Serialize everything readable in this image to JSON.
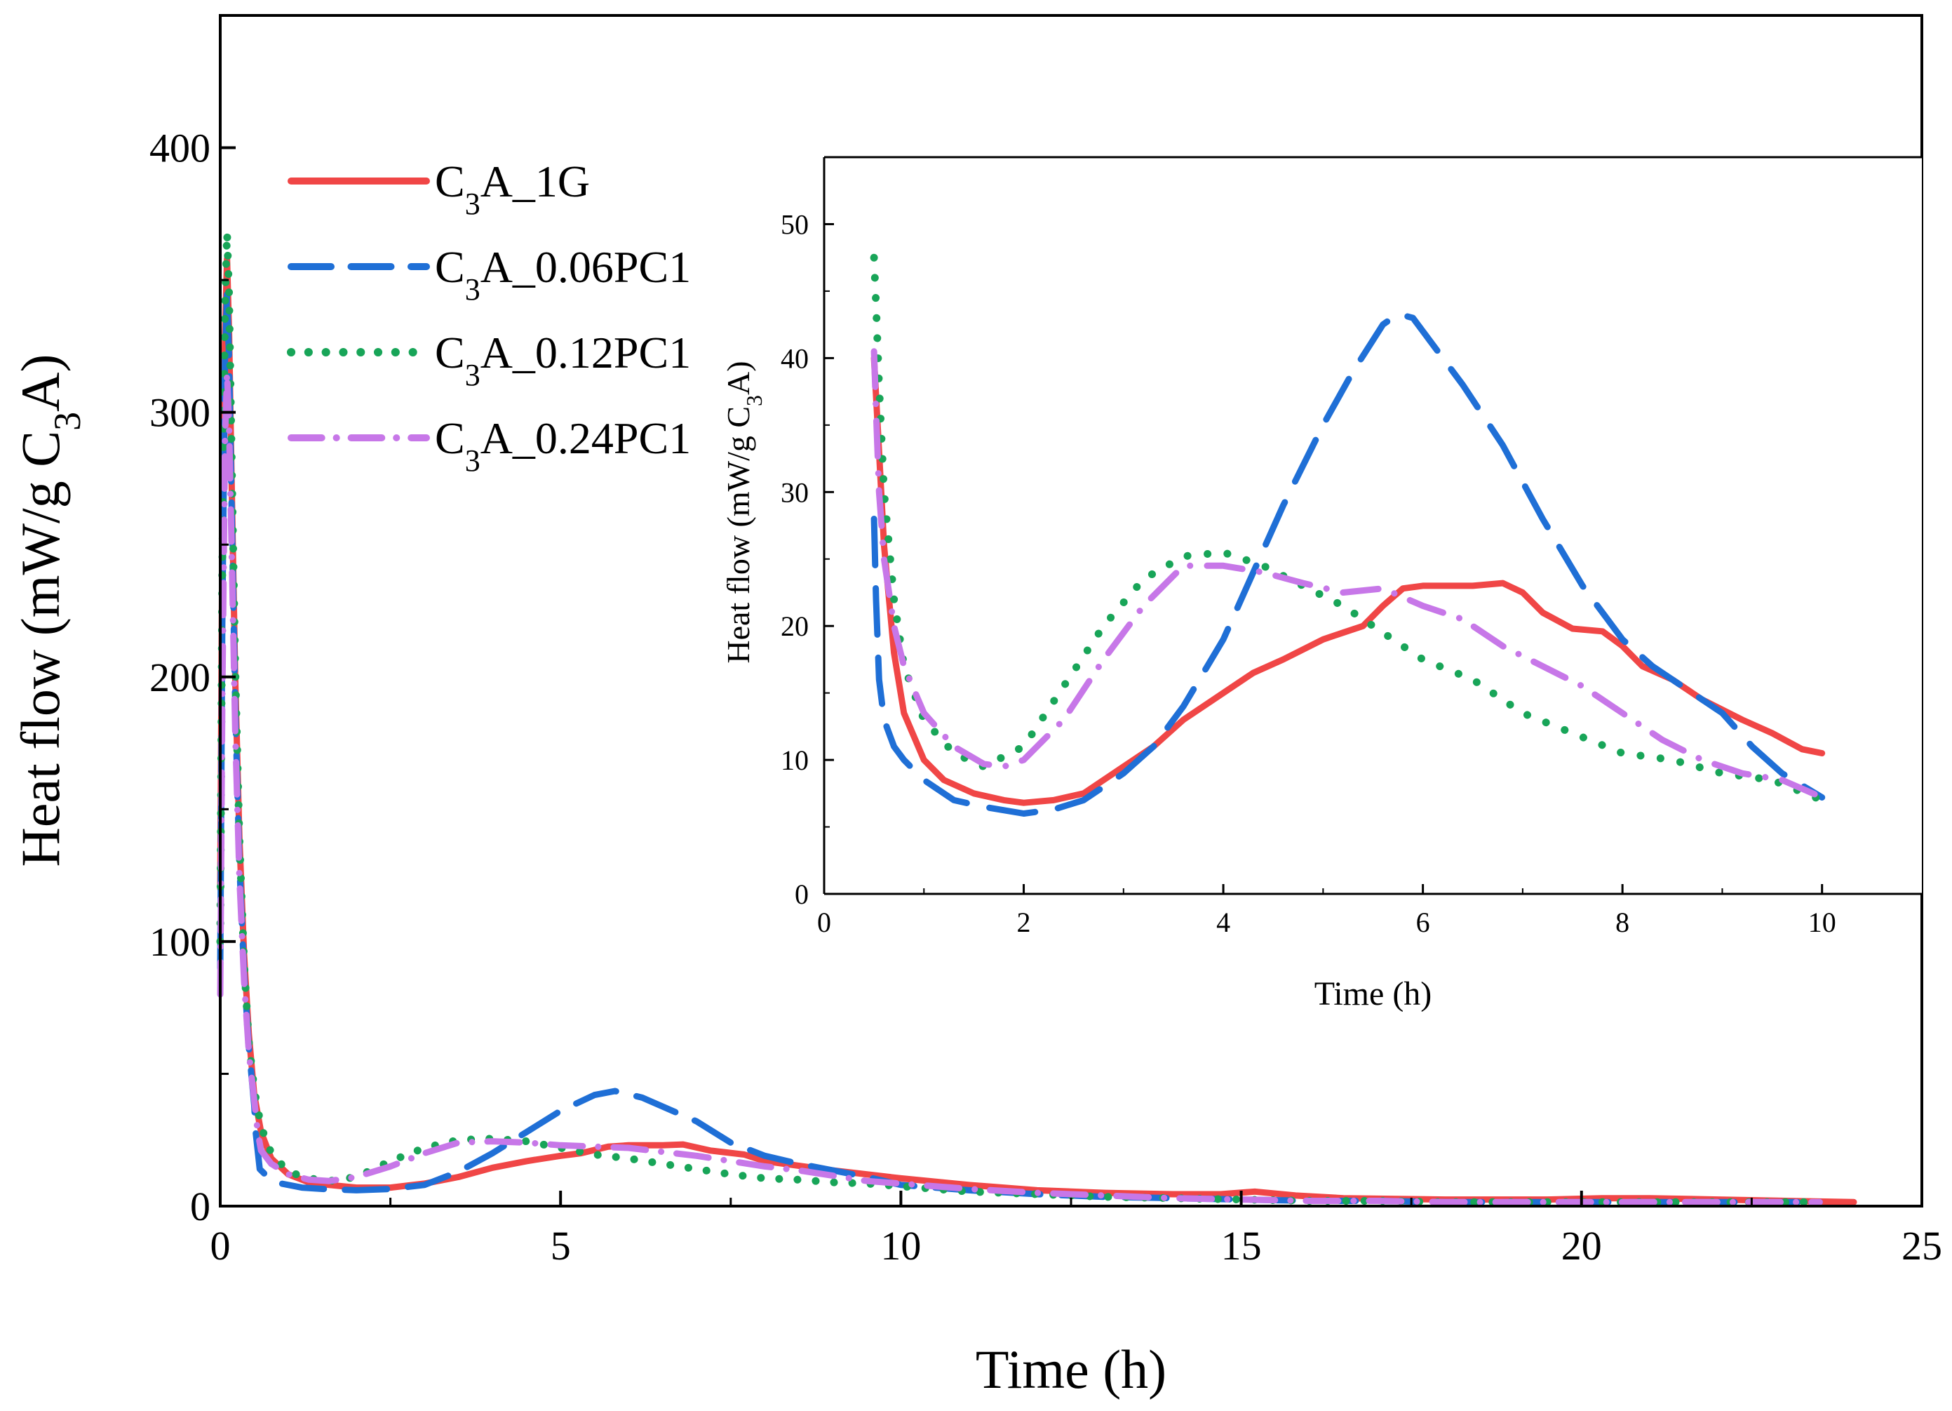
{
  "chart_data": [
    {
      "type": "line",
      "role": "main",
      "xlabel": "Time (h)",
      "ylabel_parts": [
        "Heat flow (mW/g C",
        "3",
        "A)"
      ],
      "xlim": [
        0,
        25
      ],
      "ylim": [
        0,
        450
      ],
      "xticks": [
        0,
        5,
        10,
        15,
        20,
        25
      ],
      "yticks": [
        0,
        100,
        200,
        300,
        400
      ],
      "legend_position": "top-left",
      "series": [
        {
          "name": "C3A_1G",
          "label_parts": [
            "C",
            "3",
            "A_1G"
          ],
          "color": "#f04646",
          "style": "solid",
          "x": [
            0.0,
            0.03,
            0.07,
            0.1,
            0.13,
            0.17,
            0.22,
            0.28,
            0.35,
            0.42,
            0.5,
            0.6,
            0.75,
            1.0,
            1.3,
            1.6,
            2.0,
            2.5,
            3.0,
            3.5,
            4.0,
            4.5,
            5.0,
            5.3,
            5.7,
            6.0,
            6.5,
            6.8,
            7.2,
            7.7,
            8.0,
            9.0,
            10.0,
            11.0,
            12.0,
            13.0,
            14.0,
            14.7,
            15.2,
            15.8,
            16.5,
            18.0,
            19.5,
            20.3,
            21.0,
            22.0,
            23.0,
            24.0
          ],
          "y": [
            120,
            250,
            330,
            358,
            330,
            270,
            200,
            140,
            95,
            65,
            42,
            28,
            18,
            12,
            9,
            8,
            7,
            7,
            8.5,
            11,
            14.5,
            17,
            19,
            20,
            22.5,
            23,
            23,
            23.3,
            21,
            19.5,
            17,
            13.5,
            10.5,
            8,
            6,
            5,
            4.5,
            4.5,
            5.5,
            4,
            3,
            2.5,
            2.5,
            3,
            3,
            2.5,
            2,
            1.5
          ]
        },
        {
          "name": "C3A_0.06PC1",
          "label_parts": [
            "C",
            "3",
            "A_0.06PC1"
          ],
          "color": "#1f6fd6",
          "style": "dashed",
          "x": [
            0.0,
            0.03,
            0.07,
            0.1,
            0.13,
            0.17,
            0.22,
            0.28,
            0.35,
            0.42,
            0.5,
            0.52,
            0.58,
            0.7,
            0.9,
            1.2,
            1.5,
            2.0,
            2.5,
            3.0,
            3.5,
            4.0,
            4.5,
            5.0,
            5.5,
            5.8,
            6.2,
            7.0,
            7.5,
            8.0,
            8.5,
            9.0,
            9.5,
            10.0,
            11.0,
            12.0,
            13.0,
            14.0,
            15.0,
            16.0,
            17.0,
            18.0,
            19.0,
            20.0,
            21.0,
            22.0,
            23.0,
            23.5
          ],
          "y": [
            90,
            220,
            320,
            345,
            320,
            260,
            190,
            130,
            88,
            60,
            38,
            28,
            14,
            11,
            8.5,
            7,
            6.5,
            6,
            6.5,
            8,
            13,
            20,
            28,
            36,
            42,
            43.5,
            41,
            32,
            24,
            19,
            16,
            13.5,
            11,
            8,
            6,
            4.5,
            3.5,
            3,
            2.5,
            2,
            2,
            1.5,
            1.5,
            1.5,
            1.5,
            1.5,
            1.5,
            1.5
          ]
        },
        {
          "name": "C3A_0.12PC1",
          "label_parts": [
            "C",
            "3",
            "A_0.12PC1"
          ],
          "color": "#18a558",
          "style": "dotted",
          "x": [
            0.0,
            0.03,
            0.07,
            0.1,
            0.13,
            0.17,
            0.22,
            0.28,
            0.35,
            0.42,
            0.5,
            0.6,
            0.75,
            1.0,
            1.3,
            1.6,
            2.0,
            2.5,
            3.0,
            3.5,
            4.0,
            4.5,
            5.0,
            5.5,
            6.0,
            6.5,
            7.0,
            7.5,
            8.0,
            8.5,
            9.0,
            9.5,
            10.0,
            11.0,
            12.0,
            13.0,
            14.0,
            15.0,
            16.0,
            17.0,
            18.0,
            19.0,
            20.0,
            21.0,
            22.0,
            23.0,
            23.5
          ],
          "y": [
            100,
            240,
            340,
            368,
            345,
            280,
            205,
            140,
            92,
            62,
            44,
            30,
            20,
            13,
            10.5,
            9.5,
            11,
            17,
            22,
            25,
            25.5,
            24.5,
            22,
            19.5,
            18,
            16,
            14,
            12,
            10.5,
            10,
            9,
            8.5,
            7.5,
            5.5,
            4.5,
            3.5,
            3,
            2.5,
            2,
            2,
            1.5,
            1.5,
            1.5,
            1.5,
            1.5,
            1.5,
            1.5
          ]
        },
        {
          "name": "C3A_0.24PC1",
          "label_parts": [
            "C",
            "3",
            "A_0.24PC1"
          ],
          "color": "#c777e8",
          "style": "dashdot",
          "x": [
            0.0,
            0.03,
            0.07,
            0.1,
            0.13,
            0.17,
            0.22,
            0.28,
            0.35,
            0.42,
            0.5,
            0.55,
            0.6,
            0.75,
            1.0,
            1.3,
            1.6,
            2.0,
            2.5,
            3.0,
            3.5,
            4.0,
            4.5,
            5.0,
            5.5,
            6.0,
            6.5,
            7.0,
            7.5,
            8.0,
            8.5,
            9.0,
            9.5,
            10.0,
            11.0,
            12.0,
            13.0,
            14.0,
            15.0,
            16.0,
            17.0,
            18.0,
            19.0,
            20.0,
            21.0,
            22.0,
            23.0,
            23.5
          ],
          "y": [
            80,
            190,
            290,
            315,
            295,
            245,
            180,
            125,
            85,
            58,
            40,
            28,
            21,
            16,
            12,
            10,
            9.5,
            11,
            15,
            20,
            24,
            24.5,
            24,
            23,
            22.5,
            22,
            20.5,
            19,
            17,
            15,
            13.5,
            11.5,
            9.5,
            8.5,
            6.5,
            5,
            4,
            3,
            2.5,
            2,
            2,
            1.5,
            1.5,
            1.5,
            1.5,
            1.5,
            1.5,
            1.5
          ]
        }
      ]
    },
    {
      "type": "line",
      "role": "inset",
      "legend_position": "none",
      "xlabel": "Time (h)",
      "ylabel_parts": [
        "Heat flow (mW/g C",
        "3",
        "A)"
      ],
      "xlim": [
        0,
        11
      ],
      "ylim": [
        0,
        55
      ],
      "xticks": [
        0,
        2,
        4,
        6,
        8,
        10
      ],
      "yticks": [
        0,
        10,
        20,
        30,
        40,
        50
      ],
      "series": [
        {
          "name": "C3A_1G",
          "color": "#f04646",
          "style": "solid",
          "x": [
            0.5,
            0.55,
            0.6,
            0.7,
            0.8,
            1.0,
            1.2,
            1.5,
            1.8,
            2.0,
            2.3,
            2.6,
            3.0,
            3.3,
            3.6,
            4.0,
            4.3,
            4.6,
            5.0,
            5.2,
            5.4,
            5.6,
            5.8,
            6.0,
            6.3,
            6.5,
            6.8,
            7.0,
            7.2,
            7.5,
            7.8,
            8.0,
            8.2,
            8.5,
            8.8,
            9.2,
            9.5,
            9.8,
            10.0
          ],
          "y": [
            40,
            33,
            26,
            18,
            13.5,
            10,
            8.5,
            7.5,
            7,
            6.8,
            7,
            7.5,
            9.5,
            11,
            13,
            15,
            16.5,
            17.5,
            19,
            19.5,
            20,
            21.5,
            22.8,
            23,
            23,
            23,
            23.2,
            22.5,
            21,
            19.8,
            19.6,
            18.5,
            17,
            16,
            14.5,
            13,
            12,
            10.8,
            10.5
          ]
        },
        {
          "name": "C3A_0.06PC1",
          "color": "#1f6fd6",
          "style": "dashed",
          "x": [
            0.5,
            0.52,
            0.55,
            0.6,
            0.7,
            0.8,
            1.0,
            1.3,
            1.6,
            2.0,
            2.3,
            2.6,
            3.0,
            3.3,
            3.6,
            4.0,
            4.3,
            4.6,
            5.0,
            5.3,
            5.6,
            5.75,
            5.9,
            6.1,
            6.4,
            6.8,
            7.2,
            7.6,
            8.0,
            8.3,
            8.6,
            9.0,
            9.3,
            9.6,
            10.0
          ],
          "y": [
            28,
            22,
            16,
            13,
            11,
            10,
            8.5,
            7,
            6.5,
            6,
            6.3,
            7,
            9,
            11,
            14,
            19,
            24,
            29,
            35,
            39,
            42.5,
            43.3,
            43,
            41,
            38,
            33.5,
            28,
            23,
            19,
            17,
            15.5,
            13.5,
            11,
            9,
            7.2
          ]
        },
        {
          "name": "C3A_0.12PC1",
          "color": "#18a558",
          "style": "dotted",
          "x": [
            0.5,
            0.52,
            0.55,
            0.6,
            0.7,
            0.8,
            1.0,
            1.3,
            1.6,
            2.0,
            2.4,
            2.8,
            3.2,
            3.6,
            4.0,
            4.4,
            4.8,
            5.2,
            5.6,
            6.0,
            6.5,
            7.0,
            7.5,
            8.0,
            8.5,
            9.0,
            9.5,
            10.0
          ],
          "y": [
            47.5,
            44,
            38,
            30,
            22,
            17,
            13,
            10.5,
            9.5,
            11,
            15.5,
            20,
            23.5,
            25.2,
            25.5,
            24.5,
            23,
            21.5,
            19.5,
            17.5,
            16,
            13.5,
            12,
            10.5,
            10,
            9,
            8.5,
            7
          ]
        },
        {
          "name": "C3A_0.24PC1",
          "color": "#c777e8",
          "style": "dashdot",
          "x": [
            0.5,
            0.52,
            0.55,
            0.6,
            0.7,
            0.8,
            1.0,
            1.3,
            1.6,
            1.8,
            2.0,
            2.4,
            2.8,
            3.2,
            3.6,
            4.0,
            4.4,
            4.8,
            5.2,
            5.6,
            6.0,
            6.4,
            6.8,
            7.2,
            7.6,
            8.0,
            8.4,
            8.8,
            9.2,
            9.6,
            10.0
          ],
          "y": [
            40.5,
            36,
            30,
            25,
            20,
            17,
            13.5,
            11,
            9.7,
            9.5,
            10,
            13,
            17.5,
            21.5,
            24.5,
            24.5,
            24,
            23.2,
            22.5,
            22.8,
            21.5,
            20.5,
            18.5,
            17,
            15.5,
            13.5,
            11.5,
            10,
            9,
            8.5,
            7.2
          ]
        }
      ]
    }
  ]
}
